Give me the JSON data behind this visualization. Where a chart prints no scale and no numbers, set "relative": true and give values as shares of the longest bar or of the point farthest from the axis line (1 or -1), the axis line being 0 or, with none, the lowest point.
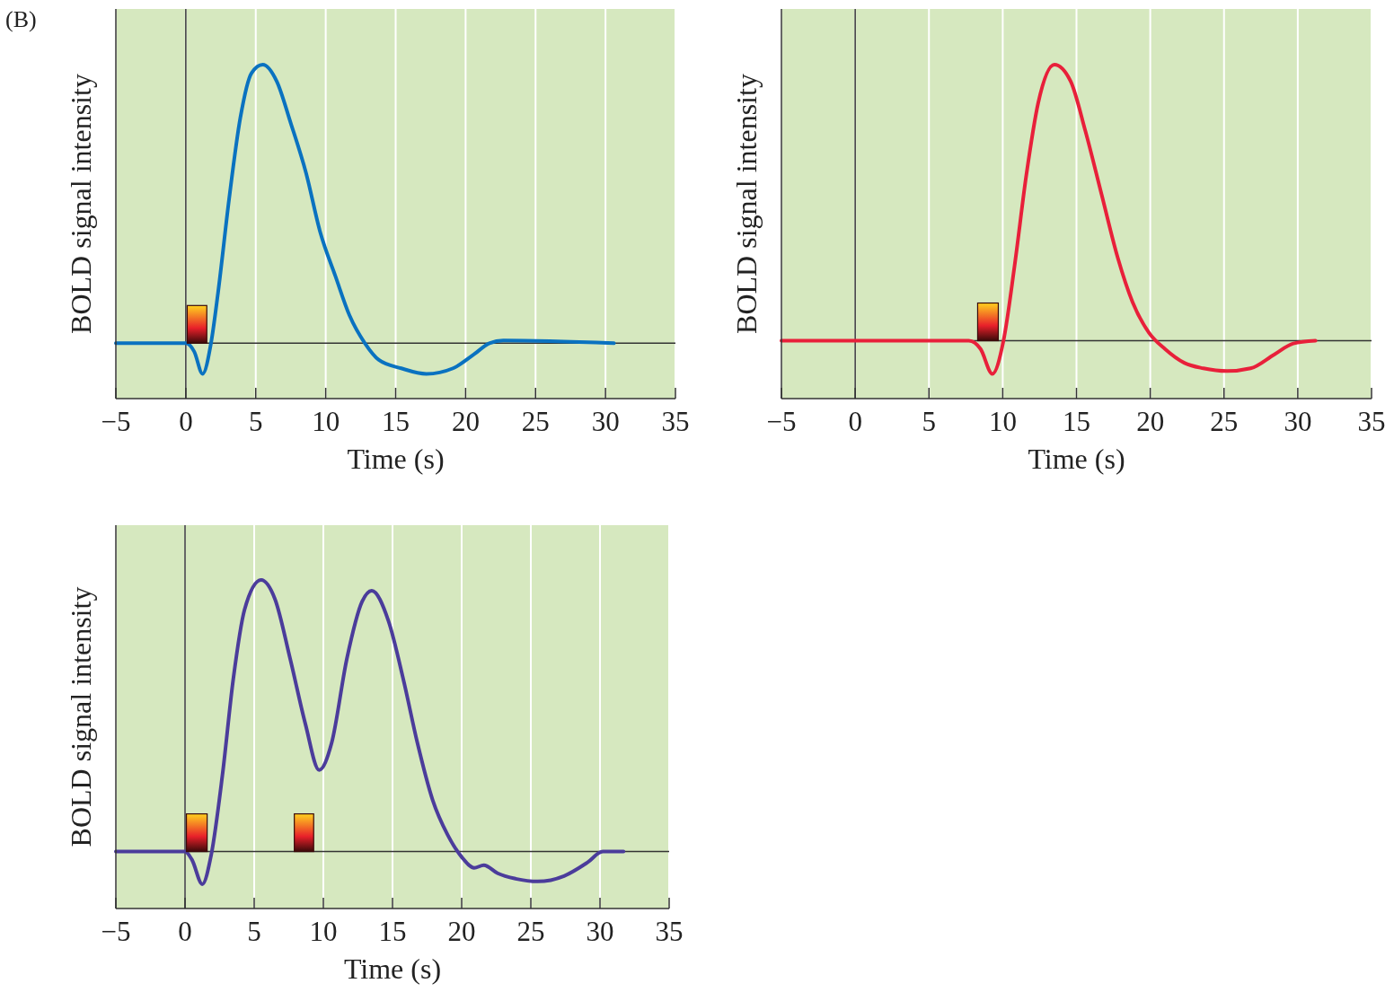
{
  "chart_data": [
    {
      "type": "line",
      "relative": true,
      "xlabel": "Time (s)",
      "ylabel": "BOLD signal intensity",
      "annotations": [
        "(B)"
      ],
      "grid": "x",
      "xlim": [
        -5,
        35
      ],
      "xticks": [
        -5,
        0,
        5,
        10,
        15,
        20,
        25,
        30,
        35
      ],
      "ref_lines": [
        {
          "axis": "x",
          "value": 0,
          "color": "#333333"
        }
      ],
      "bands": [
        {
          "axis": "x",
          "from": 0.1,
          "to": 1.5
        }
      ],
      "series": [
        {
          "color": "#0a72c0",
          "x": [
            -5,
            0,
            0.6,
            1.2,
            1.8,
            2.3,
            3.1,
            3.9,
            4.7,
            5.5,
            6.5,
            7.5,
            8.6,
            9.6,
            10.7,
            11.7,
            12.8,
            13.8,
            15.4,
            17.2,
            19.1,
            20.6,
            21.7,
            22.7,
            30.6
          ],
          "values": [
            0,
            0,
            -0.03,
            -0.11,
            0,
            0.18,
            0.52,
            0.81,
            0.97,
            1,
            0.94,
            0.79,
            0.61,
            0.4,
            0.24,
            0.1,
            0,
            -0.06,
            -0.09,
            -0.11,
            -0.09,
            -0.04,
            0,
            0.01,
            0
          ]
        }
      ]
    },
    {
      "type": "line",
      "relative": true,
      "xlabel": "Time (s)",
      "ylabel": "BOLD signal intensity",
      "grid": "x",
      "xlim": [
        -5,
        35
      ],
      "xticks": [
        -5,
        0,
        5,
        10,
        15,
        20,
        25,
        30,
        35
      ],
      "ref_lines": [
        {
          "axis": "x",
          "value": 0,
          "color": "#333333"
        }
      ],
      "bands": [
        {
          "axis": "x",
          "from": 8.3,
          "to": 9.7
        }
      ],
      "series": [
        {
          "color": "#e8203a",
          "x": [
            -5,
            7.7,
            8.5,
            9.3,
            10.05,
            10.8,
            11.6,
            12.4,
            13.5,
            14.6,
            15.6,
            16.7,
            17.8,
            18.8,
            19.9,
            21,
            22.3,
            23.6,
            25.2,
            26.8,
            28.4,
            29.7,
            31.2
          ],
          "values": [
            0,
            0,
            -0.03,
            -0.12,
            0,
            0.27,
            0.6,
            0.86,
            1,
            0.94,
            0.76,
            0.53,
            0.3,
            0.14,
            0.03,
            -0.03,
            -0.08,
            -0.1,
            -0.11,
            -0.1,
            -0.05,
            -0.01,
            0
          ]
        }
      ]
    },
    {
      "type": "line",
      "relative": true,
      "xlabel": "Time (s)",
      "ylabel": "BOLD signal intensity",
      "grid": "x",
      "xlim": [
        -5,
        35
      ],
      "xticks": [
        -5,
        0,
        5,
        10,
        15,
        20,
        25,
        30,
        35
      ],
      "ref_lines": [
        {
          "axis": "x",
          "value": 0,
          "color": "#333333"
        }
      ],
      "bands": [
        {
          "axis": "x",
          "from": 0.1,
          "to": 1.6
        },
        {
          "axis": "x",
          "from": 7.9,
          "to": 9.3
        }
      ],
      "series": [
        {
          "color": "#4b3c9b",
          "x": [
            -5,
            0,
            0.5,
            1.25,
            1.9,
            2.7,
            3.5,
            4.3,
            5.5,
            6.5,
            7.6,
            8.7,
            9.7,
            10.6,
            11.7,
            12.8,
            13.5,
            14.7,
            15.8,
            16.8,
            17.9,
            19,
            20,
            20.9,
            21.6,
            22.6,
            23.9,
            25.5,
            27.4,
            29.1,
            30.2,
            31.7
          ],
          "values": [
            0,
            0,
            -0.03,
            -0.12,
            -0.01,
            0.28,
            0.64,
            0.89,
            1,
            0.93,
            0.71,
            0.47,
            0.3,
            0.4,
            0.71,
            0.92,
            0.96,
            0.85,
            0.63,
            0.4,
            0.19,
            0.06,
            -0.02,
            -0.06,
            -0.05,
            -0.08,
            -0.1,
            -0.11,
            -0.09,
            -0.04,
            0,
            0
          ]
        }
      ]
    }
  ]
}
